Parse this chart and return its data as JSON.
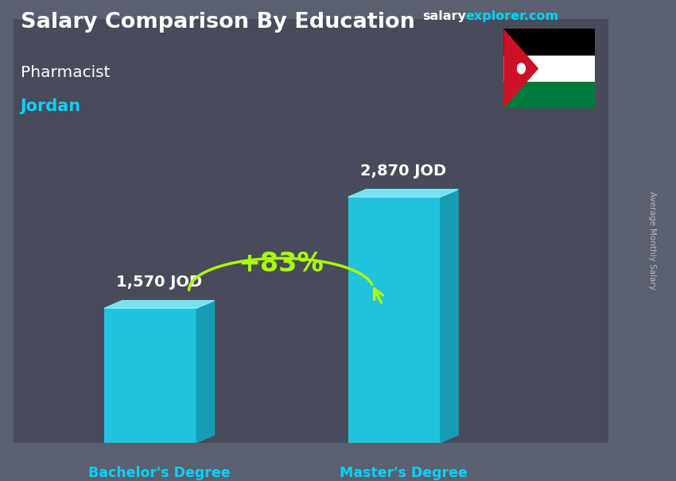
{
  "title": "Salary Comparison By Education",
  "subtitle1": "Pharmacist",
  "subtitle2": "Jordan",
  "categories": [
    "Bachelor's Degree",
    "Master's Degree"
  ],
  "values": [
    1570,
    2870
  ],
  "labels": [
    "1,570 JOD",
    "2,870 JOD"
  ],
  "pct_change": "+83%",
  "bar_color_front": "#1dd5f0",
  "bar_color_right": "#0fa8c0",
  "bar_color_top": "#7eeeff",
  "ylabel": "Average Monthly Salary",
  "title_color": "#ffffff",
  "subtitle1_color": "#ffffff",
  "subtitle2_color": "#00d4ff",
  "label_color": "#ffffff",
  "cat_label_color": "#00d4ff",
  "pct_color": "#aaff00",
  "arc_color": "#aaff00",
  "website_salary_color": "#ffffff",
  "website_explorer_color": "#00d4ff",
  "bg_color": "#5a6070",
  "flag_bg": "#404555",
  "ylabel_color": "#bbbbbb"
}
